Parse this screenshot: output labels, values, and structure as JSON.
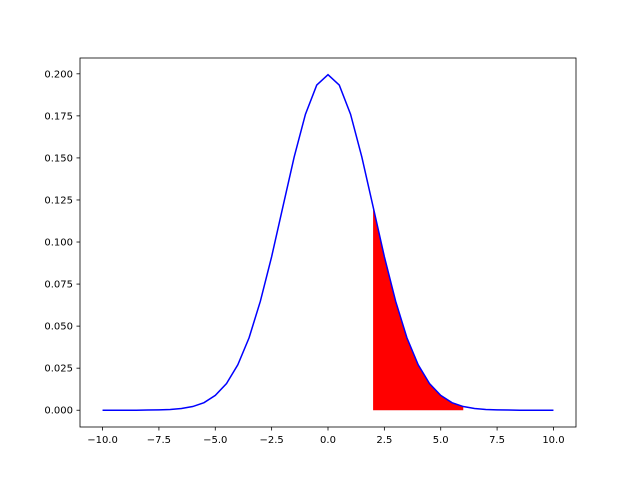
{
  "chart_data": {
    "type": "area",
    "series": [
      {
        "color": "#0000ff",
        "fill": false,
        "x": [
          -10,
          -9.5,
          -9,
          -8.5,
          -8,
          -7.5,
          -7,
          -6.5,
          -6,
          -5.5,
          -5,
          -4.5,
          -4,
          -3.5,
          -3,
          -2.5,
          -2,
          -1.5,
          -1,
          -0.5,
          0,
          0.5,
          1,
          1.5,
          2,
          2.5,
          3,
          3.5,
          4,
          4.5,
          5,
          5.5,
          6,
          6.5,
          7,
          7.5,
          8,
          8.5,
          9,
          9.5,
          10
        ],
        "values": [
          0.0,
          0.0,
          0.0,
          0.0,
          0.0001,
          0.0002,
          0.0004,
          0.001,
          0.0022,
          0.0045,
          0.0088,
          0.0159,
          0.027,
          0.0431,
          0.0648,
          0.0913,
          0.121,
          0.1506,
          0.176,
          0.1933,
          0.1995,
          0.1933,
          0.176,
          0.1506,
          0.121,
          0.0913,
          0.0648,
          0.0431,
          0.027,
          0.0159,
          0.0088,
          0.0045,
          0.0022,
          0.001,
          0.0004,
          0.0002,
          0.0001,
          0.0,
          0.0,
          0.0,
          0.0
        ]
      },
      {
        "color": "#ff0000",
        "fill": true,
        "x": [
          2,
          2.5,
          3,
          3.5,
          4,
          4.5,
          5,
          5.5,
          6
        ],
        "values": [
          0.121,
          0.0913,
          0.0648,
          0.0431,
          0.027,
          0.0159,
          0.0088,
          0.0045,
          0.0022
        ]
      }
    ],
    "xlim": [
      -11,
      11
    ],
    "ylim": [
      -0.00997,
      0.2094
    ],
    "xticks": [
      {
        "value": -10,
        "label": "−10.0"
      },
      {
        "value": -7.5,
        "label": "−7.5"
      },
      {
        "value": -5,
        "label": "−5.0"
      },
      {
        "value": -2.5,
        "label": "−2.5"
      },
      {
        "value": 0,
        "label": "0.0"
      },
      {
        "value": 2.5,
        "label": "2.5"
      },
      {
        "value": 5,
        "label": "5.0"
      },
      {
        "value": 7.5,
        "label": "7.5"
      },
      {
        "value": 10,
        "label": "10.0"
      }
    ],
    "yticks": [
      {
        "value": 0,
        "label": "0.000"
      },
      {
        "value": 0.025,
        "label": "0.025"
      },
      {
        "value": 0.05,
        "label": "0.050"
      },
      {
        "value": 0.075,
        "label": "0.075"
      },
      {
        "value": 0.1,
        "label": "0.100"
      },
      {
        "value": 0.125,
        "label": "0.125"
      },
      {
        "value": 0.15,
        "label": "0.150"
      },
      {
        "value": 0.175,
        "label": "0.175"
      },
      {
        "value": 0.2,
        "label": "0.200"
      }
    ]
  }
}
